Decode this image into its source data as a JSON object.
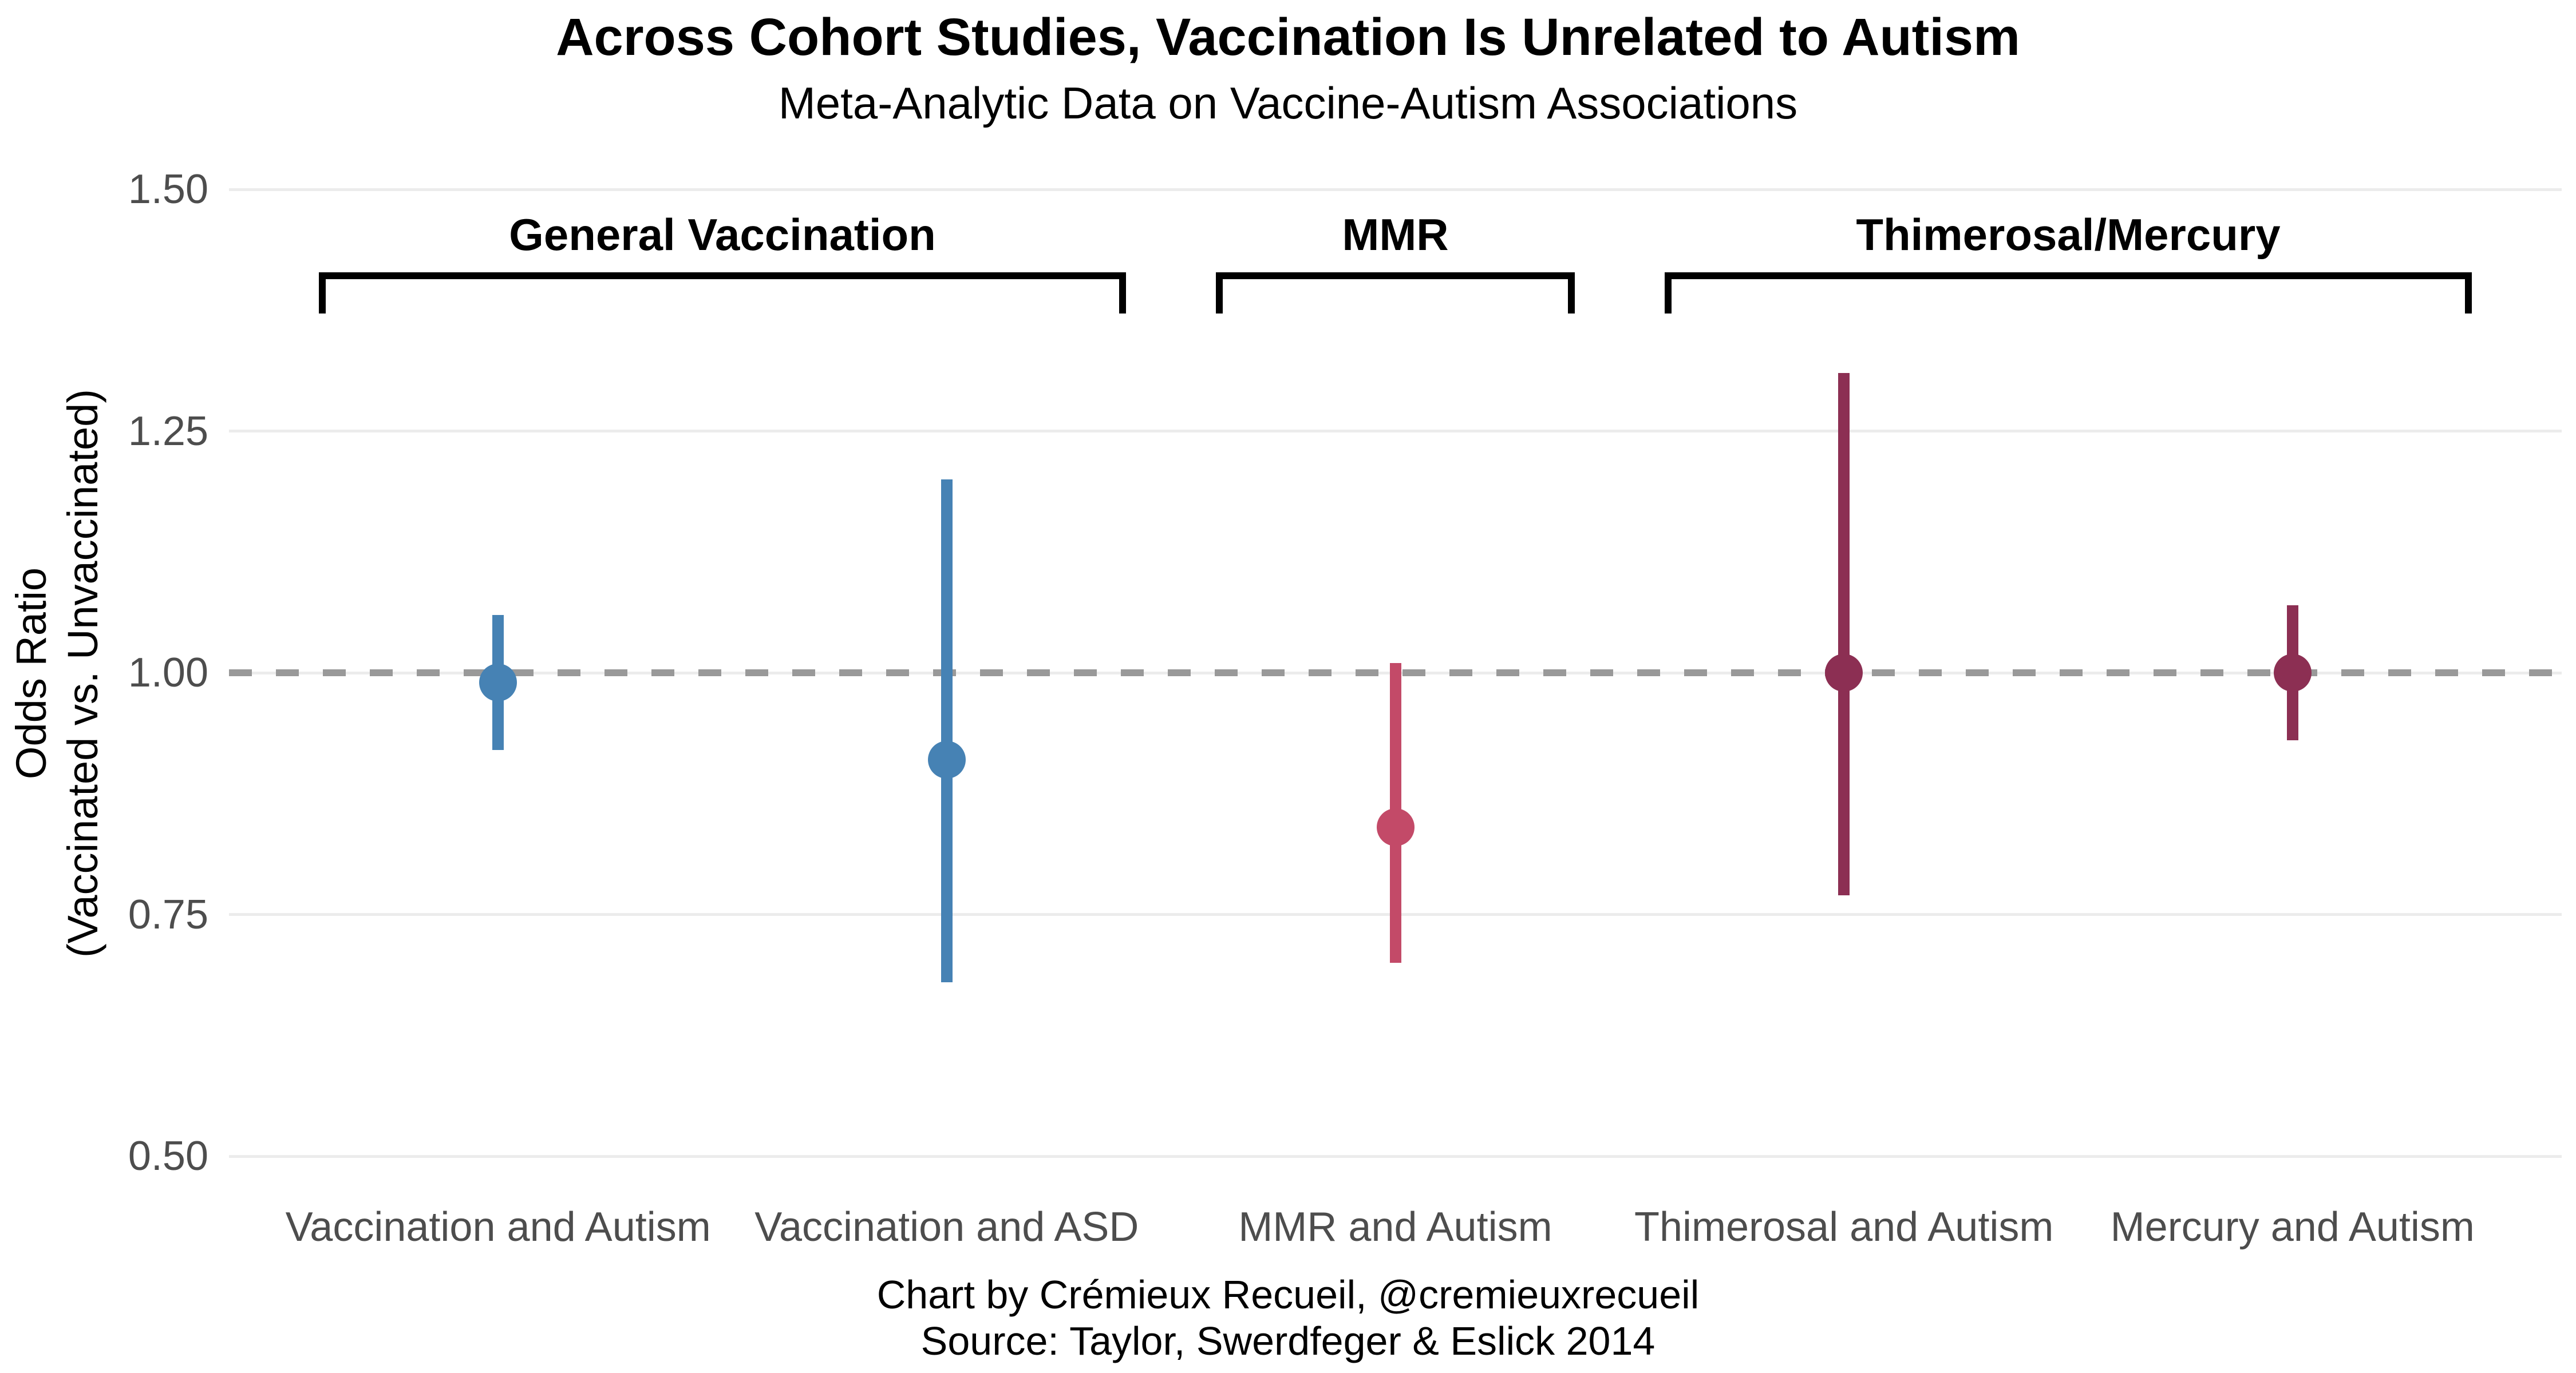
{
  "chart_data": {
    "type": "pointrange",
    "title": "Across Cohort Studies, Vaccination Is Unrelated to Autism",
    "subtitle": "Meta-Analytic Data on Vaccine-Autism Associations",
    "ylabel": [
      "Odds Ratio",
      "(Vaccinated vs. Unvaccinated)"
    ],
    "yticks": [
      {
        "label": "1.50",
        "value": 1.5
      },
      {
        "label": "1.25",
        "value": 1.25
      },
      {
        "label": "1.00",
        "value": 1.0
      },
      {
        "label": "0.75",
        "value": 0.75
      },
      {
        "label": "0.50",
        "value": 0.5
      }
    ],
    "ylim": [
      0.5,
      1.5
    ],
    "grid": true,
    "legend": "none",
    "reference_line": 1.0,
    "categories": [
      "Vaccination and Autism",
      "Vaccination and ASD",
      "MMR and Autism",
      "Thimerosal and Autism",
      "Mercury and Autism"
    ],
    "points": [
      {
        "label": "Vaccination and Autism",
        "odds_ratio": 0.99,
        "ci_low": 0.92,
        "ci_high": 1.06,
        "color": "#4682B4",
        "group": "General Vaccination"
      },
      {
        "label": "Vaccination and ASD",
        "odds_ratio": 0.91,
        "ci_low": 0.68,
        "ci_high": 1.2,
        "color": "#4682B4",
        "group": "General Vaccination"
      },
      {
        "label": "MMR and Autism",
        "odds_ratio": 0.84,
        "ci_low": 0.7,
        "ci_high": 1.01,
        "color": "#C34A68",
        "group": "MMR"
      },
      {
        "label": "Thimerosal and Autism",
        "odds_ratio": 1.0,
        "ci_low": 0.77,
        "ci_high": 1.31,
        "color": "#8C2F53",
        "group": "Thimerosal/Mercury"
      },
      {
        "label": "Mercury and Autism",
        "odds_ratio": 1.0,
        "ci_low": 0.93,
        "ci_high": 1.07,
        "color": "#8C2F53",
        "group": "Thimerosal/Mercury"
      }
    ],
    "groups": [
      {
        "label": "General Vaccination",
        "from_index": 0,
        "to_index": 1
      },
      {
        "label": "MMR",
        "from_index": 2,
        "to_index": 2
      },
      {
        "label": "Thimerosal/Mercury",
        "from_index": 3,
        "to_index": 4
      }
    ],
    "caption": [
      "Chart by Crémieux Recueil, @cremieuxrecueil",
      "Source: Taylor, Swerdfeger & Eslick 2014"
    ],
    "colors": {
      "general_vaccination": "#4682B4",
      "mmr": "#C34A68",
      "thimerosal_mercury": "#8C2F53",
      "reference_line": "#999999",
      "gridline": "#ECECEC",
      "axis_text": "#4D4D4D",
      "title_text": "#000000",
      "background": "#FFFFFF"
    }
  }
}
